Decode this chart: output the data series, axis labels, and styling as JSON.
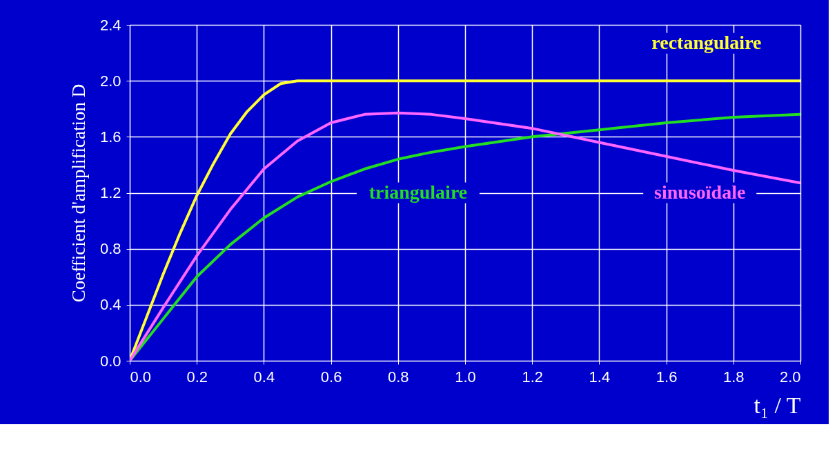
{
  "chart_data": {
    "type": "line",
    "xlabel": "t₁ / T",
    "ylabel": "Coefficient d'amplification  D",
    "xlim": [
      0,
      2
    ],
    "ylim": [
      0,
      2.4
    ],
    "xticks": [
      {
        "value": 0,
        "label": "0.0"
      },
      0.2,
      0.4,
      0.6,
      0.8,
      {
        "value": 1,
        "label": "1.0"
      },
      1.2,
      1.4,
      1.6,
      1.8,
      {
        "value": 2,
        "label": "2.0"
      }
    ],
    "yticks": [
      {
        "value": 0,
        "label": "0.0"
      },
      0.4,
      0.8,
      1.2,
      1.6,
      {
        "value": 2,
        "label": "2.0"
      },
      2.4
    ],
    "grid": true,
    "legend": false,
    "marker": "none",
    "line_style": "solid",
    "series": [
      {
        "name": "rectangulaire",
        "color": "#ffff33",
        "x": [
          0,
          0.05,
          0.1,
          0.15,
          0.2,
          0.25,
          0.3,
          0.35,
          0.4,
          0.45,
          0.5,
          0.55,
          2.0
        ],
        "values": [
          0,
          0.31,
          0.62,
          0.91,
          1.18,
          1.41,
          1.62,
          1.78,
          1.9,
          1.98,
          2.0,
          2.0,
          2.0
        ]
      },
      {
        "name": "triangulaire",
        "color": "#22dd22",
        "x": [
          0,
          0.1,
          0.2,
          0.3,
          0.4,
          0.5,
          0.6,
          0.7,
          0.8,
          0.9,
          1.0,
          1.2,
          1.4,
          1.6,
          1.8,
          2.0
        ],
        "values": [
          0,
          0.3,
          0.6,
          0.83,
          1.02,
          1.17,
          1.28,
          1.37,
          1.44,
          1.49,
          1.53,
          1.6,
          1.65,
          1.7,
          1.74,
          1.76
        ]
      },
      {
        "name": "sinusoïdale",
        "color": "#ff66ff",
        "x": [
          0,
          0.1,
          0.2,
          0.3,
          0.4,
          0.5,
          0.6,
          0.7,
          0.8,
          0.9,
          1.0,
          1.2,
          1.4,
          1.6,
          1.8,
          2.0
        ],
        "values": [
          0,
          0.38,
          0.75,
          1.08,
          1.37,
          1.57,
          1.7,
          1.76,
          1.77,
          1.76,
          1.73,
          1.66,
          1.56,
          1.46,
          1.36,
          1.27
        ]
      }
    ]
  }
}
